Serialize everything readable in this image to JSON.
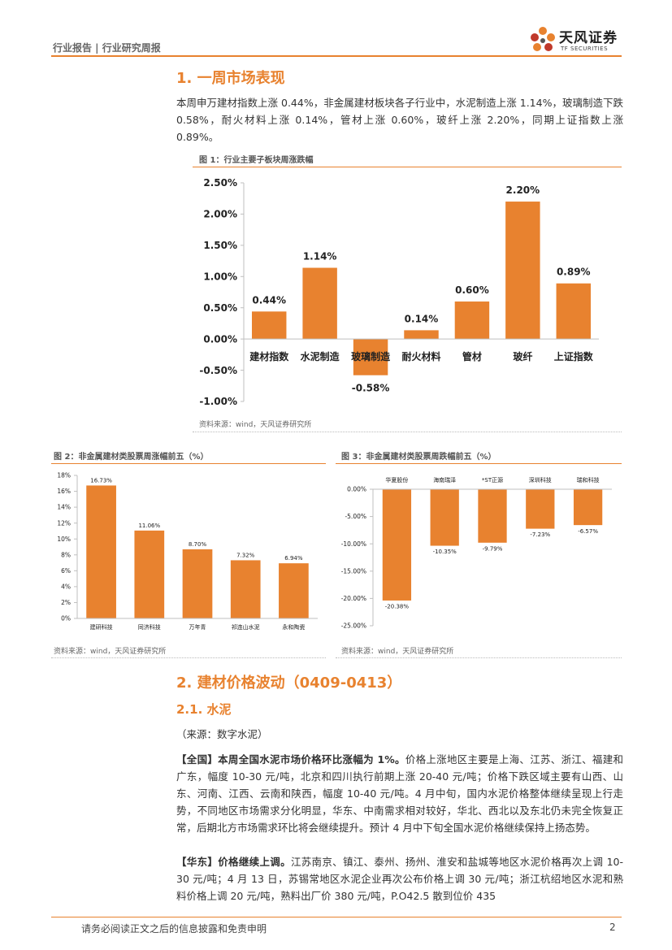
{
  "header": {
    "breadcrumb": "行业报告 | 行业研究周报",
    "logo_name": "天风证券",
    "logo_sub": "TF SECURITIES",
    "accent_color": "#e8822f"
  },
  "section1": {
    "title": "1. 一周市场表现",
    "paragraph": "本周申万建材指数上涨 0.44%，非金属建材板块各子行业中，水泥制造上涨 1.14%，玻璃制造下跌 0.58%，耐火材料上涨 0.14%，管材上涨 0.60%，玻纤上涨 2.20%，同期上证指数上涨 0.89%。"
  },
  "figures": {
    "fig1_title": "图 1：行业主要子板块周涨跌幅",
    "fig1_source": "资料来源：wind，天风证券研究所",
    "fig2_title": "图 2：非金属建材类股票周涨幅前五（%）",
    "fig2_source": "资料来源：wind，天风证券研究所",
    "fig3_title": "图 3：非金属建材类股票周跌幅前五（%）",
    "fig3_source": "资料来源：wind，天风证券研究所"
  },
  "chart_data": [
    {
      "type": "bar",
      "title": "图 1：行业主要子板块周涨跌幅",
      "categories": [
        "建材指数",
        "水泥制造",
        "玻璃制造",
        "耐火材料",
        "管材",
        "玻纤",
        "上证指数"
      ],
      "values": [
        0.44,
        1.14,
        -0.58,
        0.14,
        0.6,
        2.2,
        0.89
      ],
      "data_labels": [
        "0.44%",
        "1.14%",
        "-0.58%",
        "0.14%",
        "0.60%",
        "2.20%",
        "0.89%"
      ],
      "y_ticks": [
        "2.50%",
        "2.00%",
        "1.50%",
        "1.00%",
        "0.50%",
        "0.00%",
        "-0.50%",
        "-1.00%"
      ],
      "ylim": [
        -1.0,
        2.5
      ],
      "bar_color": "#e8822f"
    },
    {
      "type": "bar",
      "title": "图 2：非金属建材类股票周涨幅前五（%）",
      "categories": [
        "建研科技",
        "同济科技",
        "万年青",
        "祁连山水泥",
        "永和陶瓷"
      ],
      "values": [
        16.73,
        11.06,
        8.7,
        7.32,
        6.94
      ],
      "data_labels": [
        "16.73%",
        "11.06%",
        "8.70%",
        "7.32%",
        "6.94%"
      ],
      "y_ticks": [
        "18%",
        "16%",
        "14%",
        "12%",
        "10%",
        "8%",
        "6%",
        "4%",
        "2%",
        "0%"
      ],
      "ylim": [
        0,
        18
      ],
      "bar_color": "#e8822f"
    },
    {
      "type": "bar",
      "title": "图 3：非金属建材类股票周跌幅前五（%）",
      "categories": [
        "华夏股份",
        "海南瑞泽",
        "*ST正源",
        "深圳科技",
        "瑞和科技"
      ],
      "values": [
        -20.38,
        -10.35,
        -9.79,
        -7.23,
        -6.57
      ],
      "data_labels": [
        "-20.38%",
        "-10.35%",
        "-9.79%",
        "-7.23%",
        "-6.57%"
      ],
      "y_ticks": [
        "0.00%",
        "-5.00%",
        "-10.00%",
        "-15.00%",
        "-20.00%",
        "-25.00%"
      ],
      "ylim": [
        -25,
        0
      ],
      "bar_color": "#e8822f"
    }
  ],
  "section2": {
    "title": "2. 建材价格波动（0409-0413）",
    "sub_title": "2.1. 水泥",
    "source_note": "（来源：数字水泥）",
    "p1_lead": "【全国】本周全国水泥市场价格环比涨幅为 1%。",
    "p1_body": "价格上涨地区主要是上海、江苏、浙江、福建和广东，幅度 10-30 元/吨，北京和四川执行前期上涨 20-40 元/吨；价格下跌区域主要有山西、山东、河南、江西、云南和陕西，幅度 10-40 元/吨。4 月中旬，国内水泥价格整体继续呈现上行走势，不同地区市场需求分化明显，华东、中南需求相对较好，华北、西北以及东北仍未完全恢复正常，后期北方市场需求环比将会继续提升。预计 4 月中下旬全国水泥价格继续保持上扬态势。",
    "p2_lead": "【华东】价格继续上调。",
    "p2_body": "江苏南京、镇江、泰州、扬州、淮安和盐城等地区水泥价格再次上调 10-30 元/吨；4 月 13 日，苏锡常地区水泥企业再次公布价格上调 30 元/吨；浙江杭绍地区水泥和熟料价格上调 20 元/吨，熟料出厂价 380 元/吨，P.O42.5 散到位价 435"
  },
  "footer": {
    "disclaimer": "请务必阅读正文之后的信息披露和免责申明",
    "page_number": "2"
  }
}
